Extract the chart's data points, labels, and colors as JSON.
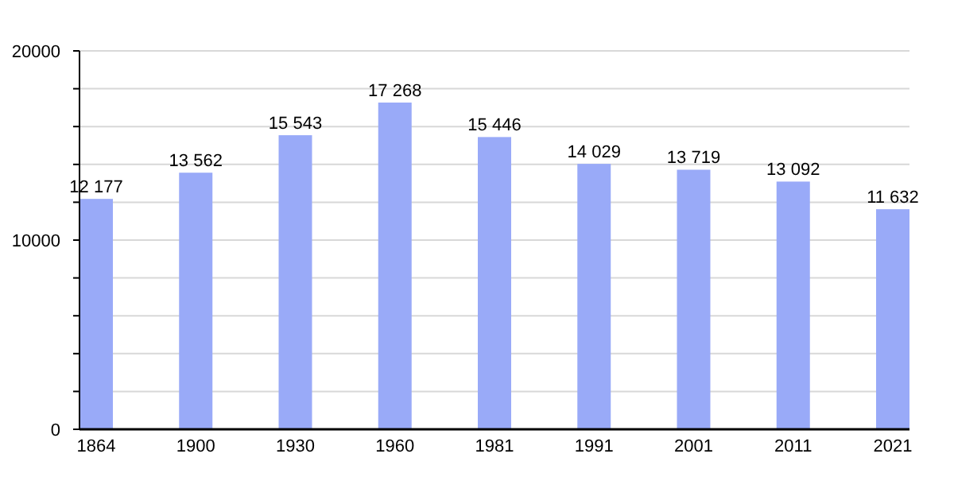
{
  "chart_data": {
    "type": "bar",
    "categories": [
      "1864",
      "1900",
      "1930",
      "1960",
      "1981",
      "1991",
      "2001",
      "2011",
      "2021"
    ],
    "values": [
      12177,
      13562,
      15543,
      17268,
      15446,
      14029,
      13719,
      13092,
      11632
    ],
    "value_labels": [
      "12 177",
      "13 562",
      "15 543",
      "17 268",
      "15 446",
      "14 029",
      "13 719",
      "13 092",
      "11 632"
    ],
    "color": "#99aaf8",
    "ylim": [
      0,
      20000
    ],
    "yticks": [
      0,
      {
        "value": 2000,
        "label": null
      },
      {
        "value": 4000,
        "label": null
      },
      {
        "value": 6000,
        "label": null
      },
      {
        "value": 8000,
        "label": null
      },
      10000,
      {
        "value": 12000,
        "label": null
      },
      {
        "value": 14000,
        "label": null
      },
      {
        "value": 16000,
        "label": null
      },
      {
        "value": 18000,
        "label": null
      },
      20000
    ],
    "grid": "y"
  }
}
